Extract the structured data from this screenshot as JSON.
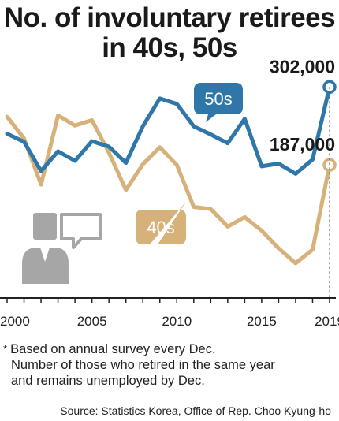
{
  "title_line1": "No. of involuntary retirees",
  "title_line2": "in 40s, 50s",
  "chart_data": {
    "type": "line",
    "x": [
      2000,
      2001,
      2002,
      2003,
      2004,
      2005,
      2006,
      2007,
      2008,
      2009,
      2010,
      2011,
      2012,
      2013,
      2014,
      2015,
      2016,
      2017,
      2018,
      2019
    ],
    "x_tick_labels": [
      "2000",
      "2005",
      "2010",
      "2015",
      "2019"
    ],
    "series": [
      {
        "name": "50s",
        "color": "#2f76a9",
        "values": [
          233,
          221,
          178,
          207,
          193,
          222,
          214,
          190,
          244,
          285,
          277,
          244,
          232,
          219,
          255,
          185,
          189,
          174,
          195,
          302
        ]
      },
      {
        "name": "40s",
        "color": "#d6b27a",
        "values": [
          258,
          226,
          158,
          260,
          245,
          253,
          205,
          150,
          188,
          213,
          187,
          125,
          122,
          96,
          110,
          90,
          64,
          42,
          62,
          187
        ]
      }
    ],
    "annotations": [
      {
        "series": "50s",
        "x": 2019,
        "label": "302,000"
      },
      {
        "series": "40s",
        "x": 2019,
        "label": "187,000"
      }
    ]
  },
  "note_symbol": "*",
  "note_line1": "Based on annual survey every Dec.",
  "note_line2": "Number of those who retired in the same year",
  "note_line3": "and remains unemployed by Dec.",
  "source": "Source: Statistics Korea, Office of Rep. Choo Kyung-ho",
  "icon": "person-speech-bubble-icon",
  "colors": {
    "axis": "#222222",
    "icon": "#a6a6a6"
  }
}
